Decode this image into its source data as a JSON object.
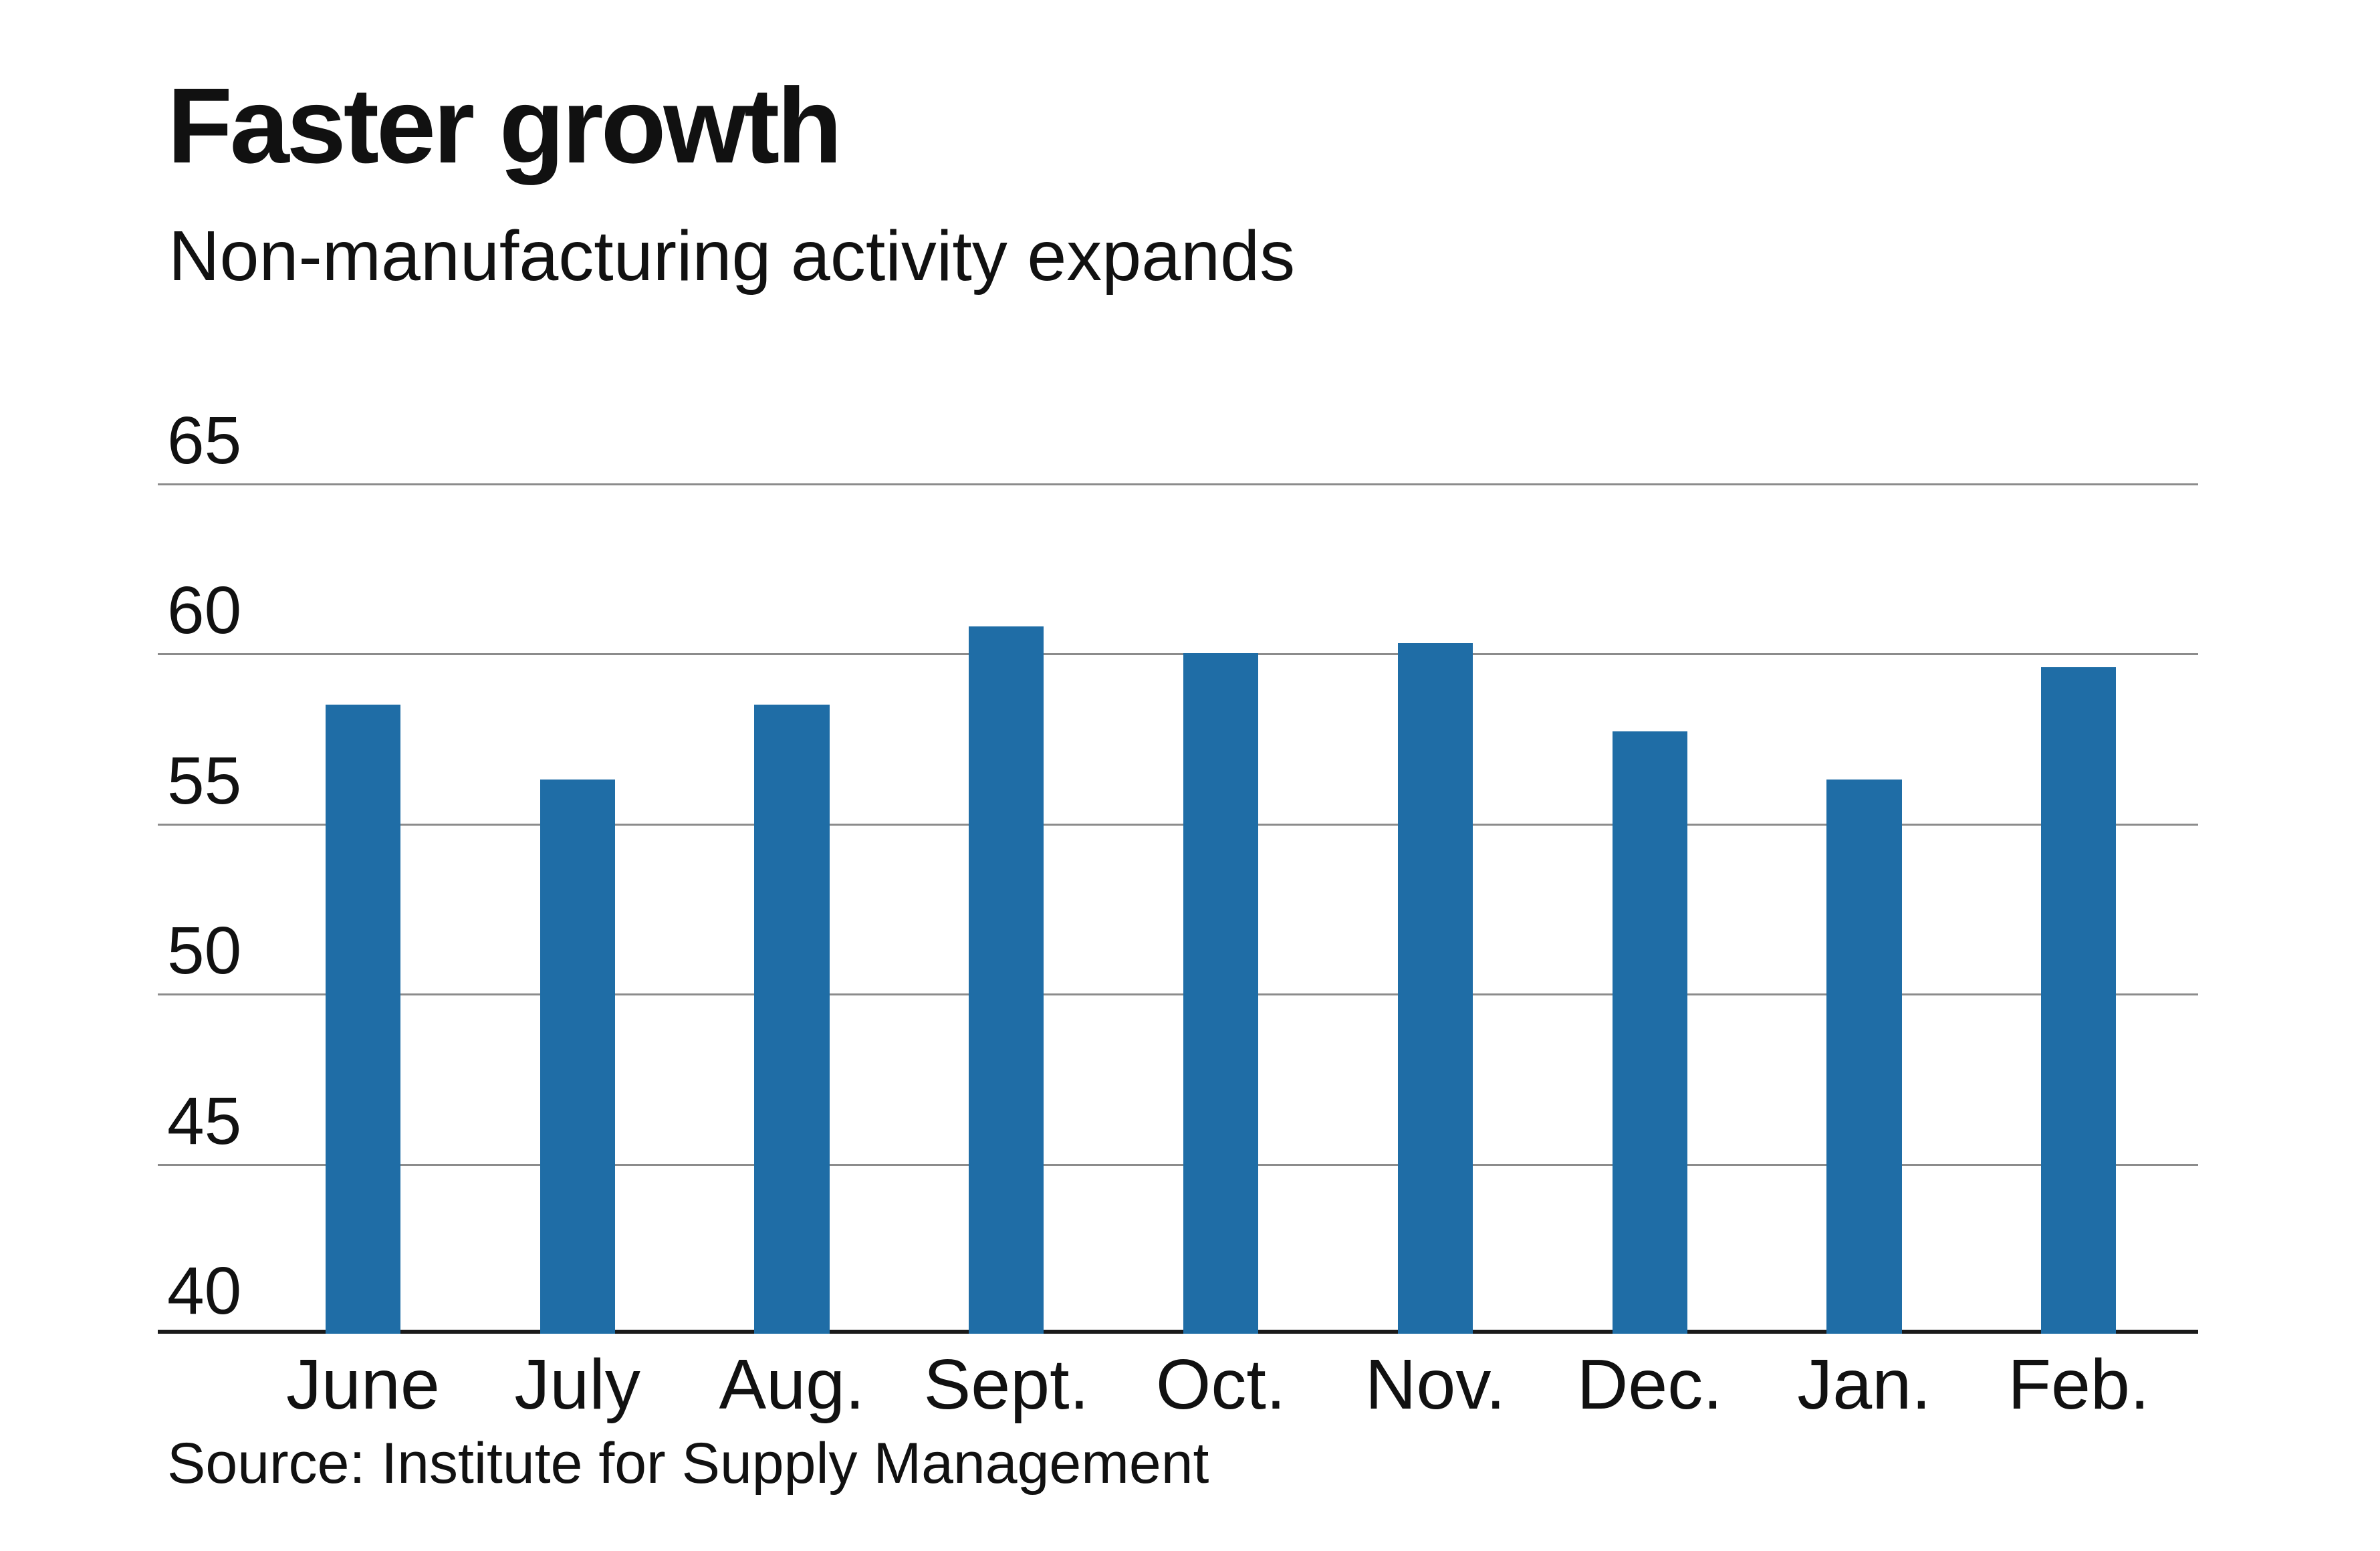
{
  "chart_data": {
    "type": "bar",
    "title": "Faster growth",
    "subtitle": "Non-manufacturing activity expands",
    "source": "Source: Institute for Supply Management",
    "categories": [
      "June",
      "July",
      "Aug.",
      "Sept.",
      "Oct.",
      "Nov.",
      "Dec.",
      "Jan.",
      "Feb."
    ],
    "values": [
      58.5,
      56.3,
      58.5,
      60.8,
      60.0,
      60.3,
      57.7,
      56.3,
      59.6
    ],
    "xlabel": "",
    "ylabel": "",
    "ylim": [
      40,
      65
    ],
    "yticks": [
      40,
      45,
      50,
      55,
      60,
      65
    ],
    "grid": true,
    "legend": "none",
    "colors": {
      "bar": "#1f6da6",
      "gridline": "#8c8c8c",
      "axis": "#1a1a1a",
      "text": "#111111",
      "background": "#ffffff"
    }
  }
}
